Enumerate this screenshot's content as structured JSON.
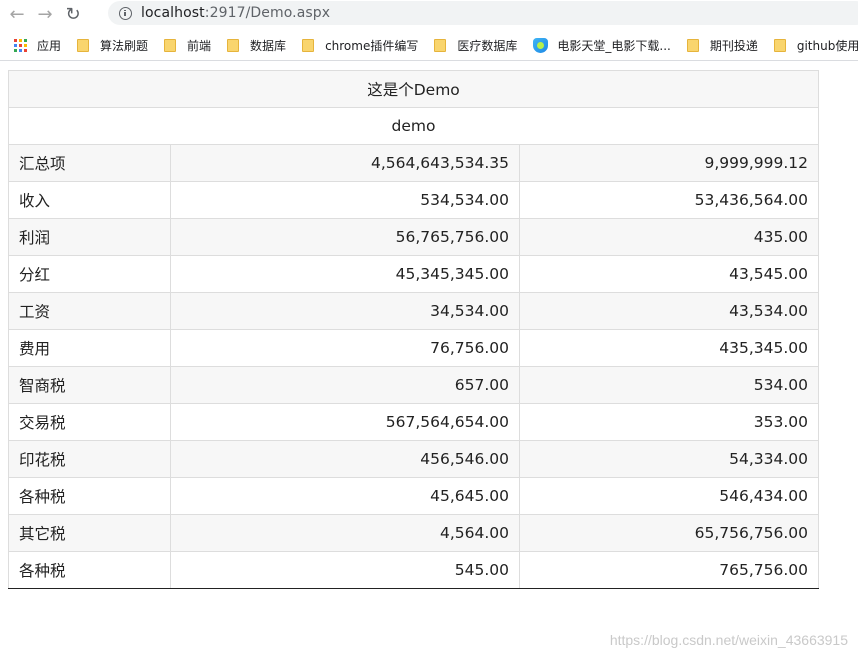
{
  "browser": {
    "url_host": "localhost",
    "url_rest": ":2917/Demo.aspx",
    "bookmarks": [
      {
        "label": "应用",
        "icon": "apps-icon"
      },
      {
        "label": "算法刷题",
        "icon": "folder-icon"
      },
      {
        "label": "前端",
        "icon": "folder-icon"
      },
      {
        "label": "数据库",
        "icon": "folder-icon"
      },
      {
        "label": "chrome插件编写",
        "icon": "folder-icon"
      },
      {
        "label": "医疗数据库",
        "icon": "folder-icon"
      },
      {
        "label": "电影天堂_电影下载...",
        "icon": "shield-icon"
      },
      {
        "label": "期刊投递",
        "icon": "folder-icon"
      },
      {
        "label": "github使用",
        "icon": "folder-icon"
      }
    ]
  },
  "table": {
    "title": "这是个Demo",
    "subtitle": "demo",
    "rows": [
      {
        "label": "汇总项",
        "v1": "4,564,643,534.35",
        "v2": "9,999,999.12"
      },
      {
        "label": "收入",
        "v1": "534,534.00",
        "v2": "53,436,564.00"
      },
      {
        "label": "利润",
        "v1": "56,765,756.00",
        "v2": "435.00"
      },
      {
        "label": "分红",
        "v1": "45,345,345.00",
        "v2": "43,545.00"
      },
      {
        "label": "工资",
        "v1": "34,534.00",
        "v2": "43,534.00"
      },
      {
        "label": "费用",
        "v1": "76,756.00",
        "v2": "435,345.00"
      },
      {
        "label": "智商税",
        "v1": "657.00",
        "v2": "534.00"
      },
      {
        "label": "交易税",
        "v1": "567,564,654.00",
        "v2": "353.00"
      },
      {
        "label": "印花税",
        "v1": "456,546.00",
        "v2": "54,334.00"
      },
      {
        "label": "各种税",
        "v1": "45,645.00",
        "v2": "546,434.00"
      },
      {
        "label": "其它税",
        "v1": "4,564.00",
        "v2": "65,756,756.00"
      },
      {
        "label": "各种税",
        "v1": "545.00",
        "v2": "765,756.00"
      }
    ]
  },
  "watermark": "https://blog.csdn.net/weixin_43663915"
}
